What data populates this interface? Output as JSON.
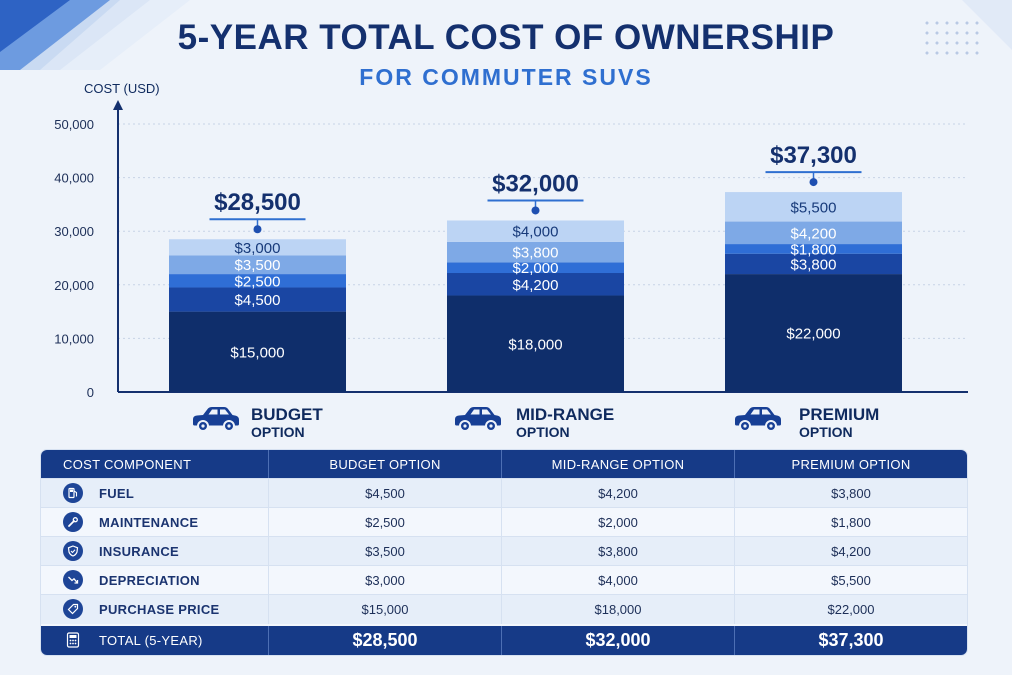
{
  "header": {
    "title": "5-YEAR TOTAL COST OF OWNERSHIP",
    "subtitle": "FOR COMMUTER SUVS"
  },
  "colors": {
    "purchase_price": "#0f2e6b",
    "fuel": "#1a46a3",
    "maintenance": "#2f6ed6",
    "insurance": "#7ea9e6",
    "depreciation": "#bcd4f4",
    "accent": "#163a87"
  },
  "chart_data": {
    "type": "bar",
    "stacked": true,
    "title": "5-YEAR TOTAL COST OF OWNERSHIP",
    "subtitle": "FOR COMMUTER SUVS",
    "ylabel": "COST (USD)",
    "xlabel": "",
    "ylim": [
      0,
      50000
    ],
    "yticks": [
      0,
      10000,
      20000,
      30000,
      40000,
      50000
    ],
    "ytick_labels": [
      "0",
      "10,000",
      "20,000",
      "30,000",
      "40,000",
      "50,000"
    ],
    "grid": true,
    "categories": [
      "BUDGET OPTION",
      "MID-RANGE OPTION",
      "PREMIUM OPTION"
    ],
    "category_titles": [
      "BUDGET",
      "MID-RANGE",
      "PREMIUM"
    ],
    "category_subtitles": [
      "OPTION",
      "OPTION",
      "OPTION"
    ],
    "series": [
      {
        "key": "purchase_price",
        "values": [
          15000,
          18000,
          22000
        ],
        "labels": [
          "$15,000",
          "$18,000",
          "$22,000"
        ]
      },
      {
        "key": "fuel",
        "values": [
          4500,
          4200,
          3800
        ],
        "labels": [
          "$4,500",
          "$4,200",
          "$3,800"
        ]
      },
      {
        "key": "maintenance",
        "values": [
          2500,
          2000,
          1800
        ],
        "labels": [
          "$2,500",
          "$2,000",
          "$1,800"
        ]
      },
      {
        "key": "insurance",
        "values": [
          3500,
          3800,
          4200
        ],
        "labels": [
          "$3,500",
          "$3,800",
          "$4,200"
        ]
      },
      {
        "key": "depreciation",
        "values": [
          3000,
          4000,
          5500
        ],
        "labels": [
          "$3,000",
          "$4,000",
          "$5,500"
        ]
      }
    ],
    "totals": [
      28500,
      32000,
      37300
    ],
    "total_labels": [
      "$28,500",
      "$32,000",
      "$37,300"
    ]
  },
  "table": {
    "headers": [
      "COST COMPONENT",
      "BUDGET OPTION",
      "MID-RANGE OPTION",
      "PREMIUM OPTION"
    ],
    "rows": [
      {
        "icon": "fuel-pump-icon",
        "label": "FUEL",
        "values": [
          "$4,500",
          "$4,200",
          "$3,800"
        ]
      },
      {
        "icon": "wrench-icon",
        "label": "MAINTENANCE",
        "values": [
          "$2,500",
          "$2,000",
          "$1,800"
        ]
      },
      {
        "icon": "shield-icon",
        "label": "INSURANCE",
        "values": [
          "$3,500",
          "$3,800",
          "$4,200"
        ]
      },
      {
        "icon": "trend-down-icon",
        "label": "DEPRECIATION",
        "values": [
          "$3,000",
          "$4,000",
          "$5,500"
        ]
      },
      {
        "icon": "price-tag-icon",
        "label": "PURCHASE PRICE",
        "values": [
          "$15,000",
          "$18,000",
          "$22,000"
        ]
      }
    ],
    "total": {
      "icon": "calculator-icon",
      "label": "TOTAL (5-YEAR)",
      "values": [
        "$28,500",
        "$32,000",
        "$37,300"
      ]
    }
  }
}
